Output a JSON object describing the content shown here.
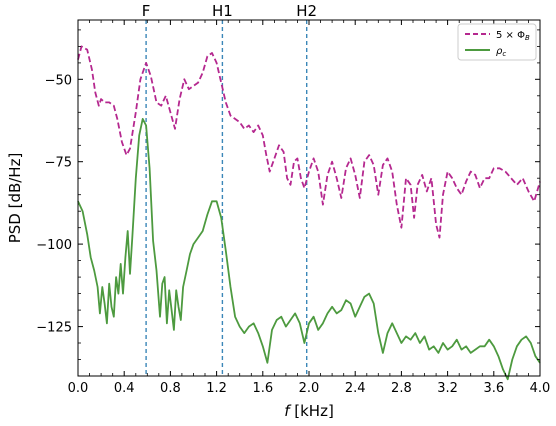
{
  "chart_data": {
    "type": "line",
    "xlabel_italic": "f",
    "xlabel_unit": " [kHz]",
    "ylabel": "PSD [dB/Hz]",
    "xlim": [
      0.0,
      4.0
    ],
    "ylim": [
      -140,
      -32
    ],
    "xticks": [
      0.0,
      0.4,
      0.8,
      1.2,
      1.6,
      2.0,
      2.4,
      2.8,
      3.2,
      3.6,
      4.0
    ],
    "xtick_labels": [
      "0.0",
      "0.4",
      "0.8",
      "1.2",
      "1.6",
      "2.0",
      "2.4",
      "2.8",
      "3.2",
      "3.6",
      "4.0"
    ],
    "yticks": [
      -50,
      -75,
      -100,
      -125
    ],
    "ytick_labels": [
      "−50",
      "−75",
      "−100",
      "−125"
    ],
    "grid": false,
    "legend_position": "top-right",
    "vlines": [
      {
        "label": "F",
        "x": 0.59
      },
      {
        "label": "H1",
        "x": 1.25
      },
      {
        "label": "H2",
        "x": 1.98
      }
    ],
    "series": [
      {
        "name": "5 × ΦB",
        "legend_main": "5 × Φ",
        "legend_sub": "B",
        "color": "#b5288f",
        "style": "dashed",
        "x": [
          0.0,
          0.03,
          0.08,
          0.12,
          0.15,
          0.18,
          0.2,
          0.23,
          0.27,
          0.31,
          0.34,
          0.38,
          0.42,
          0.45,
          0.5,
          0.54,
          0.59,
          0.63,
          0.68,
          0.72,
          0.76,
          0.8,
          0.84,
          0.88,
          0.92,
          0.96,
          1.0,
          1.04,
          1.08,
          1.12,
          1.16,
          1.2,
          1.24,
          1.28,
          1.32,
          1.36,
          1.4,
          1.44,
          1.48,
          1.52,
          1.56,
          1.6,
          1.63,
          1.66,
          1.7,
          1.74,
          1.78,
          1.81,
          1.84,
          1.87,
          1.9,
          1.93,
          1.96,
          2.0,
          2.04,
          2.08,
          2.12,
          2.16,
          2.2,
          2.24,
          2.28,
          2.32,
          2.36,
          2.4,
          2.44,
          2.48,
          2.52,
          2.56,
          2.6,
          2.64,
          2.68,
          2.72,
          2.76,
          2.8,
          2.84,
          2.88,
          2.91,
          2.94,
          2.98,
          3.02,
          3.06,
          3.1,
          3.13,
          3.16,
          3.2,
          3.24,
          3.28,
          3.32,
          3.36,
          3.4,
          3.44,
          3.48,
          3.52,
          3.56,
          3.6,
          3.65,
          3.7,
          3.75,
          3.8,
          3.85,
          3.9,
          3.95,
          4.0
        ],
        "values": [
          -44,
          -40,
          -41,
          -47,
          -54,
          -58,
          -56,
          -57,
          -57,
          -58,
          -62,
          -69,
          -73,
          -71,
          -60,
          -50,
          -45,
          -49,
          -57,
          -58,
          -55,
          -60,
          -65,
          -56,
          -50,
          -53,
          -52,
          -51,
          -48,
          -43,
          -42,
          -45,
          -51,
          -57,
          -61,
          -62,
          -63,
          -65,
          -64,
          -66,
          -64,
          -67,
          -73,
          -78,
          -74,
          -70,
          -72,
          -80,
          -82,
          -75,
          -74,
          -80,
          -83,
          -78,
          -74,
          -78,
          -88,
          -79,
          -75,
          -80,
          -86,
          -77,
          -74,
          -79,
          -86,
          -75,
          -73,
          -76,
          -85,
          -76,
          -74,
          -78,
          -88,
          -95,
          -80,
          -82,
          -92,
          -82,
          -79,
          -84,
          -80,
          -94,
          -98,
          -85,
          -78,
          -80,
          -83,
          -85,
          -81,
          -78,
          -79,
          -83,
          -80,
          -80,
          -77,
          -77,
          -78,
          -80,
          -82,
          -80,
          -84,
          -87,
          -81
        ]
      },
      {
        "name": "ρc",
        "legend_main": "ρ",
        "legend_sub": "c",
        "color": "#4d9a3f",
        "style": "solid",
        "x": [
          0.0,
          0.04,
          0.08,
          0.11,
          0.14,
          0.17,
          0.19,
          0.21,
          0.23,
          0.25,
          0.27,
          0.29,
          0.31,
          0.33,
          0.35,
          0.37,
          0.39,
          0.41,
          0.43,
          0.45,
          0.47,
          0.5,
          0.53,
          0.56,
          0.59,
          0.62,
          0.65,
          0.68,
          0.71,
          0.73,
          0.75,
          0.77,
          0.79,
          0.81,
          0.83,
          0.85,
          0.87,
          0.89,
          0.91,
          0.94,
          0.97,
          1.0,
          1.04,
          1.08,
          1.12,
          1.16,
          1.2,
          1.24,
          1.28,
          1.32,
          1.36,
          1.4,
          1.44,
          1.48,
          1.52,
          1.56,
          1.6,
          1.64,
          1.68,
          1.72,
          1.76,
          1.8,
          1.84,
          1.88,
          1.92,
          1.96,
          2.0,
          2.04,
          2.08,
          2.12,
          2.16,
          2.2,
          2.24,
          2.28,
          2.32,
          2.36,
          2.4,
          2.44,
          2.48,
          2.52,
          2.56,
          2.6,
          2.64,
          2.68,
          2.72,
          2.76,
          2.8,
          2.84,
          2.88,
          2.92,
          2.96,
          3.0,
          3.04,
          3.08,
          3.12,
          3.16,
          3.2,
          3.24,
          3.28,
          3.32,
          3.36,
          3.4,
          3.44,
          3.48,
          3.52,
          3.56,
          3.6,
          3.64,
          3.68,
          3.72,
          3.76,
          3.8,
          3.84,
          3.88,
          3.92,
          3.96,
          4.0
        ],
        "values": [
          -87,
          -90,
          -97,
          -104,
          -108,
          -113,
          -121,
          -113,
          -118,
          -124,
          -112,
          -119,
          -122,
          -110,
          -115,
          -106,
          -115,
          -104,
          -96,
          -109,
          -98,
          -80,
          -67,
          -62,
          -64,
          -77,
          -99,
          -108,
          -122,
          -112,
          -110,
          -124,
          -114,
          -120,
          -126,
          -114,
          -119,
          -123,
          -113,
          -108,
          -103,
          -100,
          -98,
          -96,
          -91,
          -87,
          -87,
          -92,
          -102,
          -113,
          -122,
          -125,
          -127,
          -125,
          -124,
          -127,
          -131,
          -136,
          -126,
          -123,
          -122,
          -125,
          -123,
          -121,
          -124,
          -130,
          -124,
          -122,
          -126,
          -124,
          -121,
          -119,
          -121,
          -120,
          -117,
          -118,
          -122,
          -119,
          -116,
          -115,
          -118,
          -127,
          -133,
          -127,
          -124,
          -127,
          -130,
          -128,
          -129,
          -127,
          -130,
          -128,
          -132,
          -131,
          -133,
          -130,
          -132,
          -131,
          -129,
          -132,
          -131,
          -133,
          -132,
          -131,
          -131,
          -129,
          -131,
          -134,
          -138,
          -141,
          -135,
          -131,
          -129,
          -128,
          -130,
          -134,
          -136
        ]
      }
    ]
  }
}
